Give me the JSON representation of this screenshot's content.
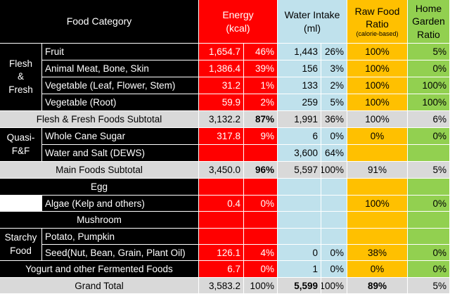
{
  "header": {
    "food_category": "Food Category",
    "energy_1": "Energy",
    "energy_2": "(kcal)",
    "water_1": "Water Intake",
    "water_2": "(ml)",
    "raw_1": "Raw Food",
    "raw_2": "Ratio",
    "raw_3": "(calorie-based)",
    "home_1": "Home",
    "home_2": "Garden",
    "home_3": "Ratio"
  },
  "groups": {
    "flesh_1": "Flesh",
    "flesh_2": "&",
    "flesh_3": "Fresh",
    "quasi_1": "Quasi-",
    "quasi_2": "F&F",
    "starchy_1": "Starchy",
    "starchy_2": "Food"
  },
  "rows": [
    {
      "label": "Fruit",
      "energy": "1,654.7",
      "energy_pct": "46%",
      "water": "1,443",
      "water_pct": "26%",
      "raw": "100%",
      "home": "5%"
    },
    {
      "label": "Animal Meat, Bone, Skin",
      "energy": "1,386.4",
      "energy_pct": "39%",
      "water": "156",
      "water_pct": "3%",
      "raw": "100%",
      "home": "0%"
    },
    {
      "label": "Vegetable (Leaf, Flower, Stem)",
      "energy": "31.2",
      "energy_pct": "1%",
      "water": "133",
      "water_pct": "2%",
      "raw": "100%",
      "home": "100%"
    },
    {
      "label": "Vegetable (Root)",
      "energy": "59.9",
      "energy_pct": "2%",
      "water": "259",
      "water_pct": "5%",
      "raw": "100%",
      "home": "100%"
    },
    {
      "label": "Flesh & Fresh Foods Subtotal",
      "energy": "3,132.2",
      "energy_pct": "87%",
      "water": "1,991",
      "water_pct": "36%",
      "raw": "100%",
      "home": "6%"
    },
    {
      "label": "Whole Cane Sugar",
      "energy": "317.8",
      "energy_pct": "9%",
      "water": "6",
      "water_pct": "0%",
      "raw": "0%",
      "home": "0%"
    },
    {
      "label": "Water and Salt (DEWS)",
      "energy": "",
      "energy_pct": "",
      "water": "3,600",
      "water_pct": "64%",
      "raw": "",
      "home": ""
    },
    {
      "label": "Main Foods Subtotal",
      "energy": "3,450.0",
      "energy_pct": "96%",
      "water": "5,597",
      "water_pct": "100%",
      "raw": "91%",
      "home": "5%"
    },
    {
      "label": "Egg",
      "energy": "",
      "energy_pct": "",
      "water": "",
      "water_pct": "",
      "raw": "",
      "home": ""
    },
    {
      "label": "Algae (Kelp and others)",
      "energy": "0.4",
      "energy_pct": "0%",
      "water": "",
      "water_pct": "",
      "raw": "100%",
      "home": "0%"
    },
    {
      "label": "Mushroom",
      "energy": "",
      "energy_pct": "",
      "water": "",
      "water_pct": "",
      "raw": "",
      "home": ""
    },
    {
      "label": "Potato, Pumpkin",
      "energy": "",
      "energy_pct": "",
      "water": "",
      "water_pct": "",
      "raw": "",
      "home": ""
    },
    {
      "label": "Seed(Nut, Bean, Grain, Plant Oil)",
      "energy": "126.1",
      "energy_pct": "4%",
      "water": "0",
      "water_pct": "0%",
      "raw": "38%",
      "home": "0%"
    },
    {
      "label": "Yogurt and other Fermented Foods",
      "energy": "6.7",
      "energy_pct": "0%",
      "water": "1",
      "water_pct": "0%",
      "raw": "0%",
      "home": "0%"
    },
    {
      "label": "Grand Total",
      "energy": "3,583.2",
      "energy_pct": "100%",
      "water": "5,599",
      "water_pct": "100%",
      "raw": "89%",
      "home": "5%"
    }
  ],
  "colors": {
    "category_bg": "#000000",
    "energy_bg": "#ff0000",
    "water_bg": "#bfe1ec",
    "raw_bg": "#ffc000",
    "home_bg": "#92d050",
    "subtotal_bg": "#d9d9d9"
  }
}
